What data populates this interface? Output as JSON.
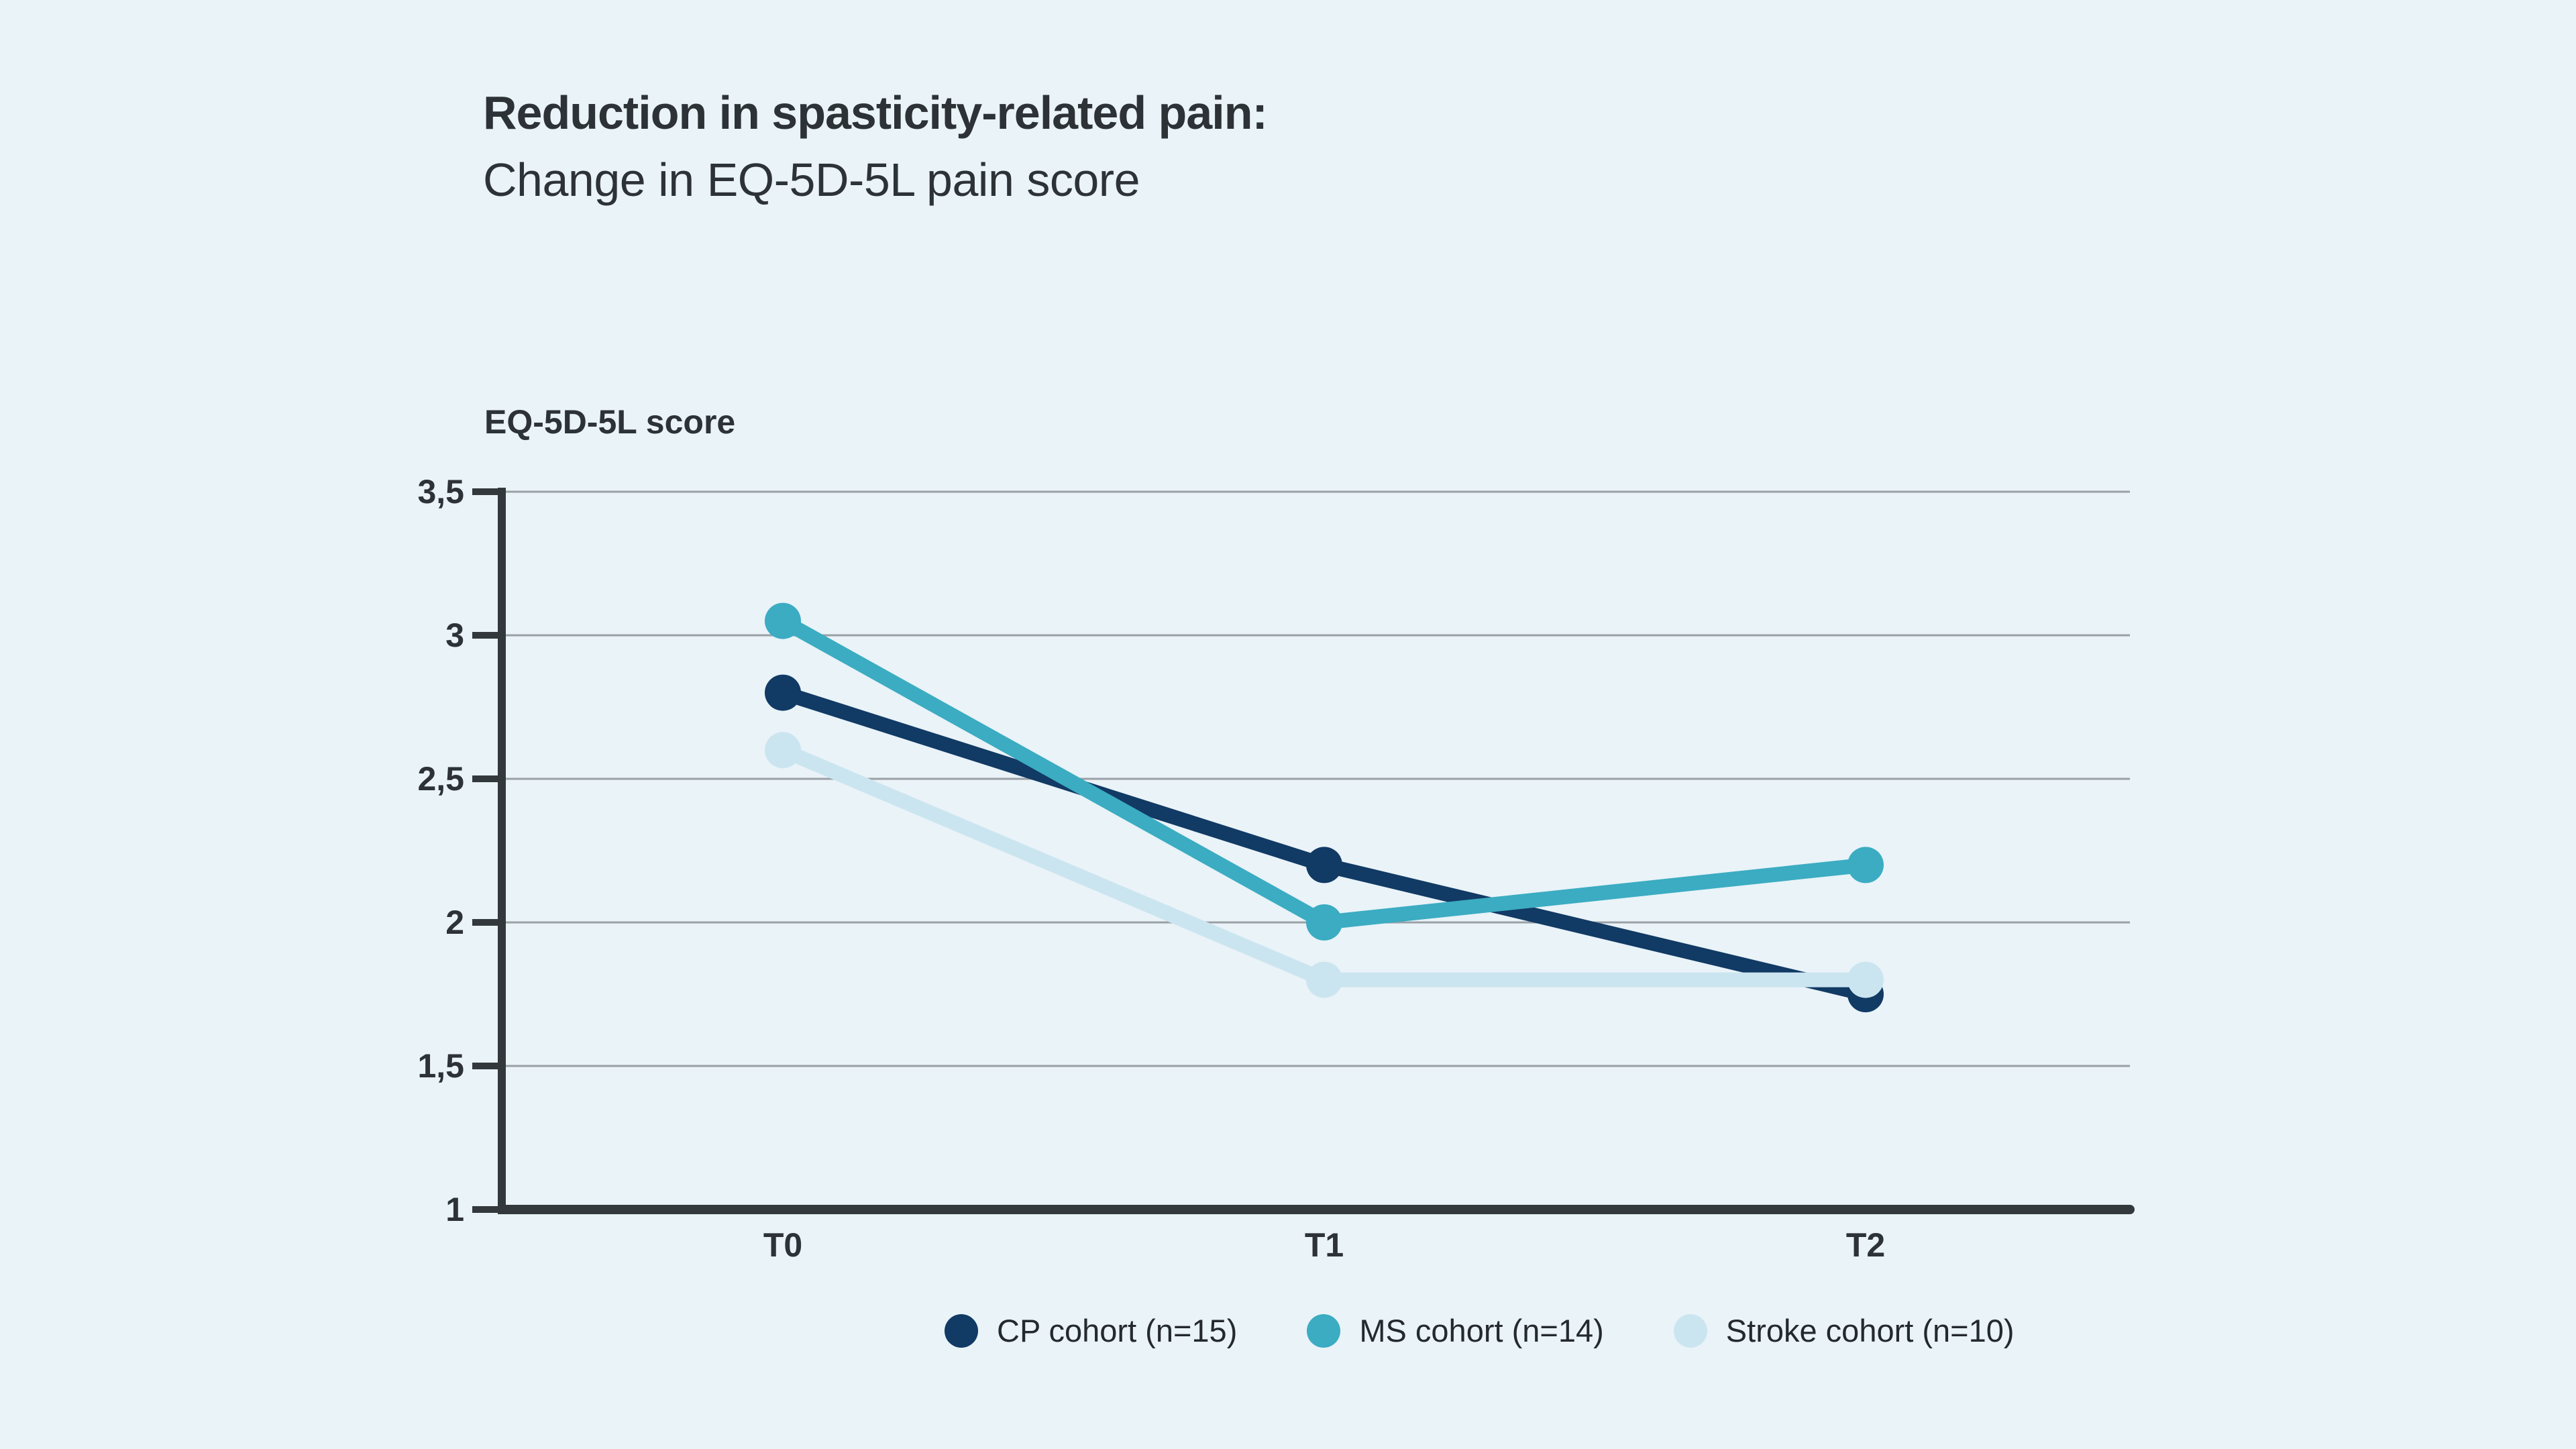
{
  "colors": {
    "background": "#e9f3f8",
    "title_text": "#2d3237",
    "axis_text": "#2d3237",
    "legend_text": "#24292e",
    "gridline": "#9aa0a5",
    "axis_line": "#33383c"
  },
  "header": {
    "title": "Reduction in spasticity-related pain:",
    "subtitle": "Change in EQ-5D-5L pain score"
  },
  "chart_data": {
    "type": "line",
    "title": "Reduction in spasticity-related pain:",
    "subtitle": "Change in EQ-5D-5L pain score",
    "y_axis_title": "EQ-5D-5L score",
    "xlabel": "",
    "ylabel": "EQ-5D-5L score",
    "categories": [
      "T0",
      "T1",
      "T2"
    ],
    "series": [
      {
        "name": "CP cohort (n=15)",
        "color": "#113a64",
        "values": [
          2.8,
          2.2,
          1.75
        ]
      },
      {
        "name": "MS cohort (n=14)",
        "color": "#3bacc2",
        "values": [
          3.05,
          2.0,
          2.2
        ]
      },
      {
        "name": "Stroke cohort (n=10)",
        "color": "#cbe5f0",
        "values": [
          2.6,
          1.8,
          1.8
        ]
      }
    ],
    "ylim": [
      1,
      3.5
    ],
    "yticks": [
      {
        "value": 1,
        "label": "1"
      },
      {
        "value": 1.5,
        "label": "1,5"
      },
      {
        "value": 2,
        "label": "2"
      },
      {
        "value": 2.5,
        "label": "2,5"
      },
      {
        "value": 3,
        "label": "3"
      },
      {
        "value": 3.5,
        "label": "3,5"
      }
    ],
    "grid": "horizontal",
    "decimal_separator": ",",
    "legend_position": "bottom",
    "legend": [
      "CP cohort (n=15)",
      "MS cohort (n=14)",
      "Stroke cohort (n=10)"
    ]
  }
}
